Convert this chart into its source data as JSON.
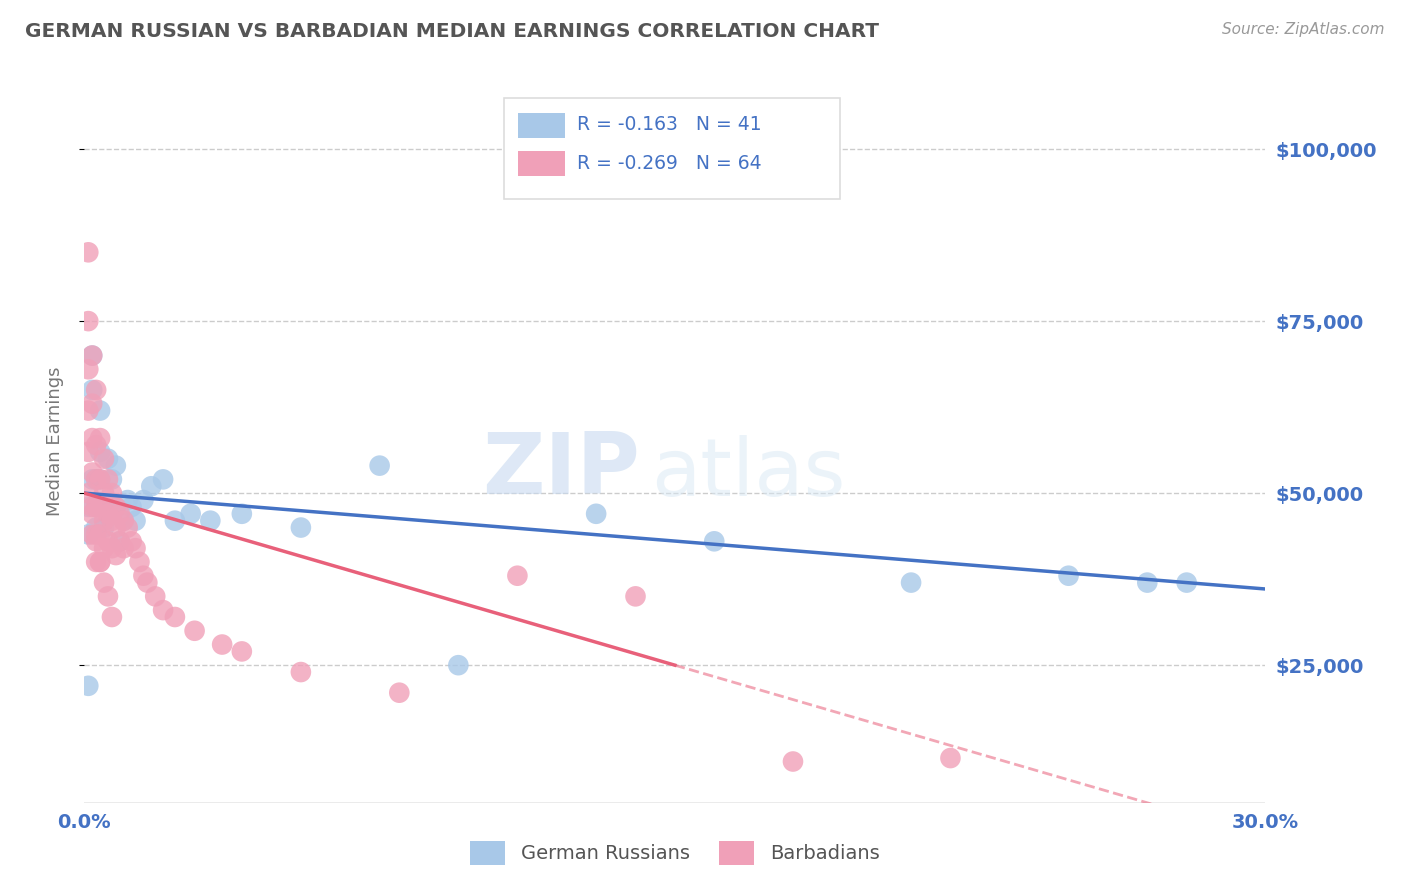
{
  "title": "GERMAN RUSSIAN VS BARBADIAN MEDIAN EARNINGS CORRELATION CHART",
  "source": "Source: ZipAtlas.com",
  "ylabel": "Median Earnings",
  "xlim": [
    0.0,
    0.3
  ],
  "ylim": [
    5000,
    110000
  ],
  "ytick_positions": [
    25000,
    50000,
    75000,
    100000
  ],
  "ytick_labels": [
    "$25,000",
    "$50,000",
    "$75,000",
    "$100,000"
  ],
  "blue_color": "#a8c8e8",
  "pink_color": "#f0a0b8",
  "blue_line_color": "#4472C4",
  "pink_line_color": "#e8607a",
  "legend_R_blue": "R = -0.163",
  "legend_N_blue": "N = 41",
  "legend_R_pink": "R = -0.269",
  "legend_N_pink": "N = 64",
  "watermark_zip": "ZIP",
  "watermark_atlas": "atlas",
  "background_color": "#ffffff",
  "grid_color": "#cccccc",
  "blue_x": [
    0.001,
    0.001,
    0.002,
    0.002,
    0.002,
    0.003,
    0.003,
    0.003,
    0.004,
    0.004,
    0.004,
    0.005,
    0.005,
    0.006,
    0.006,
    0.007,
    0.007,
    0.008,
    0.008,
    0.009,
    0.01,
    0.011,
    0.012,
    0.013,
    0.015,
    0.017,
    0.02,
    0.023,
    0.027,
    0.032,
    0.04,
    0.055,
    0.075,
    0.095,
    0.13,
    0.16,
    0.21,
    0.25,
    0.27,
    0.28,
    0.001
  ],
  "blue_y": [
    22000,
    48000,
    52000,
    65000,
    70000,
    45000,
    48000,
    52000,
    56000,
    62000,
    52000,
    48000,
    45000,
    47000,
    55000,
    52000,
    47000,
    54000,
    48000,
    43000,
    46000,
    49000,
    48000,
    46000,
    49000,
    51000,
    52000,
    46000,
    47000,
    46000,
    47000,
    45000,
    54000,
    25000,
    47000,
    43000,
    37000,
    38000,
    37000,
    37000,
    44000
  ],
  "pink_x": [
    0.001,
    0.001,
    0.001,
    0.001,
    0.001,
    0.002,
    0.002,
    0.002,
    0.002,
    0.002,
    0.002,
    0.003,
    0.003,
    0.003,
    0.003,
    0.003,
    0.003,
    0.004,
    0.004,
    0.004,
    0.004,
    0.004,
    0.005,
    0.005,
    0.005,
    0.005,
    0.006,
    0.006,
    0.006,
    0.007,
    0.007,
    0.007,
    0.008,
    0.008,
    0.008,
    0.009,
    0.009,
    0.01,
    0.01,
    0.011,
    0.012,
    0.013,
    0.014,
    0.015,
    0.016,
    0.018,
    0.02,
    0.023,
    0.028,
    0.035,
    0.04,
    0.055,
    0.08,
    0.11,
    0.14,
    0.18,
    0.22,
    0.001,
    0.002,
    0.003,
    0.004,
    0.005,
    0.006,
    0.007
  ],
  "pink_y": [
    85000,
    75000,
    68000,
    62000,
    56000,
    70000,
    63000,
    58000,
    53000,
    48000,
    44000,
    65000,
    57000,
    52000,
    48000,
    44000,
    40000,
    58000,
    52000,
    48000,
    44000,
    40000,
    55000,
    50000,
    46000,
    42000,
    52000,
    47000,
    43000,
    50000,
    46000,
    42000,
    48000,
    45000,
    41000,
    47000,
    43000,
    46000,
    42000,
    45000,
    43000,
    42000,
    40000,
    38000,
    37000,
    35000,
    33000,
    32000,
    30000,
    28000,
    27000,
    24000,
    21000,
    38000,
    35000,
    11000,
    11500,
    50000,
    47000,
    43000,
    40000,
    37000,
    35000,
    32000
  ]
}
